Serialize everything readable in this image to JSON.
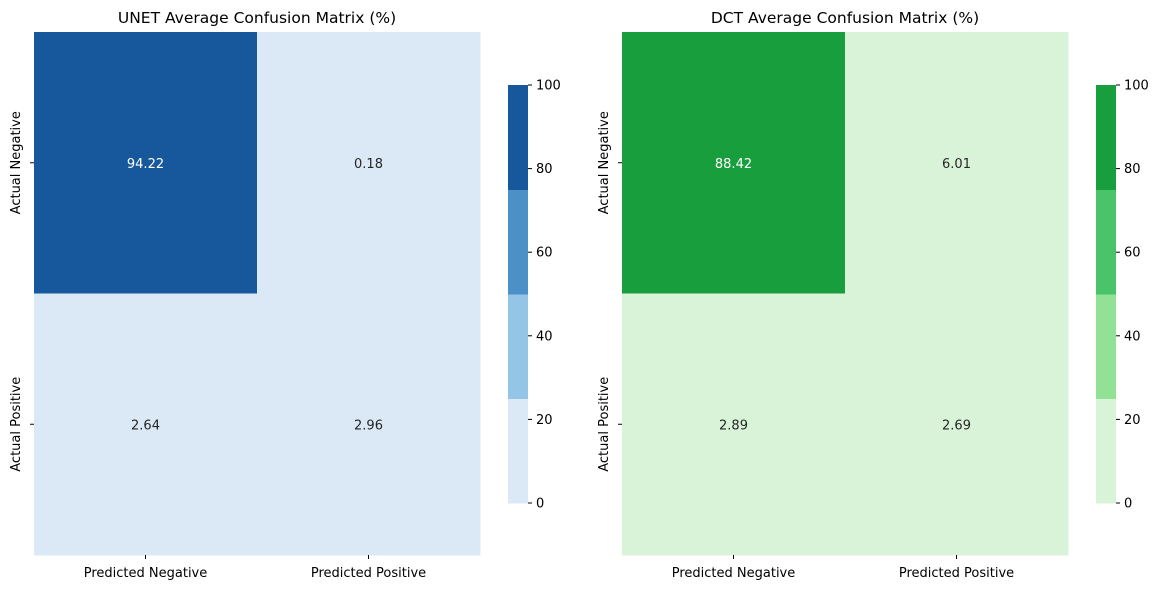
{
  "chart_data": [
    {
      "type": "heatmap",
      "title": "UNET Average Confusion Matrix (%)",
      "row_labels": [
        "Actual Negative",
        "Actual Positive"
      ],
      "col_labels": [
        "Predicted Negative",
        "Predicted Positive"
      ],
      "values": [
        [
          94.22,
          0.18
        ],
        [
          2.64,
          2.96
        ]
      ],
      "value_labels": [
        [
          "94.22",
          "0.18"
        ],
        [
          "2.64",
          "2.96"
        ]
      ],
      "colorbar": {
        "range": [
          0,
          100
        ],
        "ticks": [
          0,
          20,
          40,
          60,
          80,
          100
        ],
        "tick_labels": [
          "0",
          "20",
          "40",
          "60",
          "80",
          "100"
        ],
        "levels": [
          0,
          25,
          50,
          75,
          100
        ],
        "colors": [
          "#dbe9f6",
          "#94c4e6",
          "#4b91c8",
          "#17589c"
        ]
      },
      "text_colors": {
        "dark_cell": "#ffffff",
        "light_cell": "#262626"
      }
    },
    {
      "type": "heatmap",
      "title": "DCT Average Confusion Matrix (%)",
      "row_labels": [
        "Actual Negative",
        "Actual Positive"
      ],
      "col_labels": [
        "Predicted Negative",
        "Predicted Positive"
      ],
      "values": [
        [
          88.42,
          6.01
        ],
        [
          2.89,
          2.69
        ]
      ],
      "value_labels": [
        [
          "88.42",
          "6.01"
        ],
        [
          "2.89",
          "2.69"
        ]
      ],
      "colorbar": {
        "range": [
          0,
          100
        ],
        "ticks": [
          0,
          20,
          40,
          60,
          80,
          100
        ],
        "tick_labels": [
          "0",
          "20",
          "40",
          "60",
          "80",
          "100"
        ],
        "levels": [
          0,
          25,
          50,
          75,
          100
        ],
        "colors": [
          "#d9f3d9",
          "#91e294",
          "#49c46a",
          "#189e3d"
        ]
      },
      "text_colors": {
        "dark_cell": "#ffffff",
        "light_cell": "#262626"
      }
    }
  ]
}
